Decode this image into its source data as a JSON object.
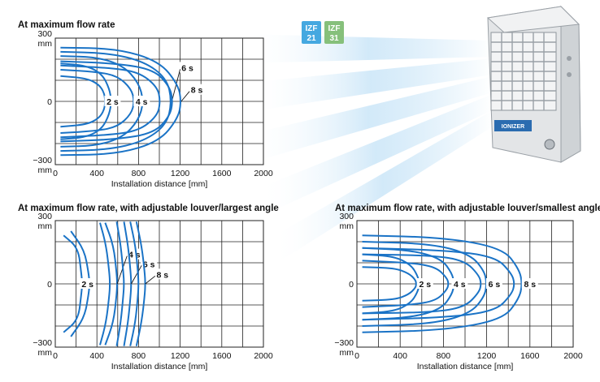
{
  "badges": [
    {
      "line1": "IZF",
      "line2": "21",
      "color": "#45a8e0"
    },
    {
      "line1": "IZF",
      "line2": "31",
      "color": "#86c07b"
    }
  ],
  "product": {
    "brand_label": "IONIZER"
  },
  "colors": {
    "curve": "#1a73c6",
    "grid": "#222222",
    "ray": "#cfe6f7"
  },
  "chart_data": [
    {
      "type": "line",
      "title": "At maximum flow rate",
      "xlabel": "Installation distance [mm]",
      "x_ticks": [
        "0",
        "400",
        "800",
        "1200",
        "1600",
        "2000"
      ],
      "y_ticks": [
        {
          "line1": "300",
          "line2": "mm"
        },
        {
          "line1": "0",
          "line2": ""
        },
        {
          "line1": "−300",
          "line2": "mm"
        }
      ],
      "xlim": [
        0,
        2000
      ],
      "ylim": [
        -300,
        300
      ],
      "grid": true,
      "series": [
        {
          "label": "2 s",
          "label_at": [
            550,
            0
          ],
          "outer": [
            [
              50,
              180
            ],
            [
              300,
              170
            ],
            [
              450,
              130
            ],
            [
              520,
              60
            ],
            [
              540,
              0
            ],
            [
              520,
              -60
            ],
            [
              450,
              -130
            ],
            [
              300,
              -170
            ],
            [
              50,
              -180
            ]
          ],
          "inner": [
            [
              50,
              120
            ],
            [
              300,
              110
            ],
            [
              420,
              80
            ],
            [
              470,
              40
            ],
            [
              480,
              0
            ],
            [
              470,
              -40
            ],
            [
              420,
              -80
            ],
            [
              300,
              -110
            ],
            [
              50,
              -120
            ]
          ]
        },
        {
          "label": "4 s",
          "label_at": [
            830,
            0
          ],
          "outer": [
            [
              50,
              215
            ],
            [
              400,
              210
            ],
            [
              650,
              170
            ],
            [
              800,
              90
            ],
            [
              850,
              0
            ],
            [
              800,
              -90
            ],
            [
              650,
              -170
            ],
            [
              400,
              -210
            ],
            [
              50,
              -215
            ]
          ],
          "inner": [
            [
              50,
              150
            ],
            [
              400,
              140
            ],
            [
              600,
              120
            ],
            [
              730,
              60
            ],
            [
              760,
              0
            ],
            [
              730,
              -60
            ],
            [
              600,
              -120
            ],
            [
              400,
              -140
            ],
            [
              50,
              -150
            ]
          ]
        },
        {
          "label": "6 s",
          "label_at": [
            1270,
            160
          ],
          "outer": [
            [
              50,
              235
            ],
            [
              500,
              230
            ],
            [
              850,
              190
            ],
            [
              1070,
              110
            ],
            [
              1120,
              0
            ],
            [
              1070,
              -110
            ],
            [
              850,
              -190
            ],
            [
              500,
              -230
            ],
            [
              50,
              -235
            ]
          ],
          "inner": [
            [
              50,
              170
            ],
            [
              500,
              160
            ],
            [
              800,
              140
            ],
            [
              980,
              70
            ],
            [
              1010,
              0
            ],
            [
              980,
              -70
            ],
            [
              800,
              -140
            ],
            [
              500,
              -160
            ],
            [
              50,
              -170
            ]
          ]
        },
        {
          "label": "8 s",
          "label_at": [
            1360,
            55
          ],
          "outer": [
            [
              50,
              255
            ],
            [
              600,
              250
            ],
            [
              1000,
              190
            ],
            [
              1180,
              80
            ],
            [
              1210,
              0
            ],
            [
              1180,
              -80
            ],
            [
              1000,
              -190
            ],
            [
              600,
              -250
            ],
            [
              50,
              -255
            ]
          ],
          "inner": [
            [
              50,
              190
            ],
            [
              600,
              180
            ],
            [
              950,
              150
            ],
            [
              1100,
              70
            ],
            [
              1130,
              0
            ],
            [
              1100,
              -70
            ],
            [
              950,
              -150
            ],
            [
              600,
              -180
            ],
            [
              50,
              -190
            ]
          ]
        }
      ]
    },
    {
      "type": "line",
      "title": "At maximum flow rate, with adjustable louver/largest angle",
      "xlabel": "Installation distance [mm]",
      "x_ticks": [
        "0",
        "400",
        "800",
        "1200",
        "1600",
        "2000"
      ],
      "y_ticks": [
        {
          "line1": "300",
          "line2": "mm"
        },
        {
          "line1": "0",
          "line2": ""
        },
        {
          "line1": "−300",
          "line2": "mm"
        }
      ],
      "xlim": [
        0,
        2000
      ],
      "ylim": [
        -300,
        300
      ],
      "grid": true,
      "series": [
        {
          "label": "2 s",
          "label_at": [
            310,
            0
          ],
          "outer": [
            [
              150,
              250
            ],
            [
              280,
              160
            ],
            [
              320,
              50
            ],
            [
              330,
              0
            ],
            [
              320,
              -50
            ],
            [
              280,
              -160
            ],
            [
              150,
              -250
            ]
          ],
          "inner": [
            [
              80,
              230
            ],
            [
              220,
              170
            ],
            [
              250,
              50
            ],
            [
              260,
              0
            ],
            [
              250,
              -50
            ],
            [
              220,
              -170
            ],
            [
              80,
              -230
            ]
          ]
        },
        {
          "label": "4 s",
          "label_at": [
            760,
            140
          ],
          "outer": [
            [
              480,
              290
            ],
            [
              560,
              180
            ],
            [
              590,
              50
            ],
            [
              595,
              0
            ],
            [
              590,
              -50
            ],
            [
              560,
              -180
            ],
            [
              480,
              -290
            ]
          ],
          "inner": [
            [
              430,
              290
            ],
            [
              490,
              180
            ],
            [
              520,
              50
            ],
            [
              525,
              0
            ],
            [
              520,
              -50
            ],
            [
              490,
              -180
            ],
            [
              430,
              -290
            ]
          ]
        },
        {
          "label": "6 s",
          "label_at": [
            900,
            95
          ],
          "outer": [
            [
              660,
              295
            ],
            [
              700,
              180
            ],
            [
              725,
              50
            ],
            [
              730,
              0
            ],
            [
              725,
              -50
            ],
            [
              700,
              -180
            ],
            [
              660,
              -295
            ]
          ],
          "inner": [
            [
              590,
              295
            ],
            [
              630,
              180
            ],
            [
              655,
              50
            ],
            [
              660,
              0
            ],
            [
              655,
              -50
            ],
            [
              630,
              -180
            ],
            [
              590,
              -295
            ]
          ]
        },
        {
          "label": "8 s",
          "label_at": [
            1030,
            45
          ],
          "outer": [
            [
              780,
              295
            ],
            [
              830,
              180
            ],
            [
              860,
              50
            ],
            [
              865,
              0
            ],
            [
              860,
              -50
            ],
            [
              830,
              -180
            ],
            [
              780,
              -295
            ]
          ],
          "inner": [
            [
              720,
              295
            ],
            [
              770,
              180
            ],
            [
              795,
              50
            ],
            [
              800,
              0
            ],
            [
              795,
              -50
            ],
            [
              770,
              -180
            ],
            [
              720,
              -295
            ]
          ]
        }
      ]
    },
    {
      "type": "line",
      "title": "At maximum flow rate, with adjustable louver/smallest angle",
      "xlabel": "Installation distance [mm]",
      "x_ticks": [
        "0",
        "400",
        "800",
        "1200",
        "1600",
        "2000"
      ],
      "y_ticks": [
        {
          "line1": "300",
          "line2": "mm"
        },
        {
          "line1": "0",
          "line2": ""
        },
        {
          "line1": "−300",
          "line2": "mm"
        }
      ],
      "xlim": [
        0,
        2000
      ],
      "ylim": [
        -300,
        300
      ],
      "grid": true,
      "series": [
        {
          "label": "2 s",
          "label_at": [
            630,
            0
          ],
          "outer": [
            [
              50,
              140
            ],
            [
              350,
              130
            ],
            [
              500,
              90
            ],
            [
              560,
              40
            ],
            [
              580,
              0
            ],
            [
              560,
              -40
            ],
            [
              500,
              -90
            ],
            [
              350,
              -130
            ],
            [
              50,
              -140
            ]
          ],
          "inner": [
            [
              50,
              80
            ],
            [
              350,
              75
            ],
            [
              480,
              50
            ],
            [
              540,
              20
            ],
            [
              550,
              0
            ],
            [
              540,
              -20
            ],
            [
              480,
              -50
            ],
            [
              350,
              -75
            ],
            [
              50,
              -80
            ]
          ]
        },
        {
          "label": "4 s",
          "label_at": [
            950,
            0
          ],
          "outer": [
            [
              50,
              170
            ],
            [
              500,
              160
            ],
            [
              780,
              120
            ],
            [
              880,
              50
            ],
            [
              900,
              0
            ],
            [
              880,
              -50
            ],
            [
              780,
              -120
            ],
            [
              500,
              -160
            ],
            [
              50,
              -170
            ]
          ],
          "inner": [
            [
              50,
              110
            ],
            [
              500,
              100
            ],
            [
              730,
              80
            ],
            [
              830,
              30
            ],
            [
              850,
              0
            ],
            [
              830,
              -30
            ],
            [
              730,
              -80
            ],
            [
              500,
              -100
            ],
            [
              50,
              -110
            ]
          ]
        },
        {
          "label": "6 s",
          "label_at": [
            1270,
            0
          ],
          "outer": [
            [
              50,
              200
            ],
            [
              700,
              190
            ],
            [
              1050,
              140
            ],
            [
              1180,
              60
            ],
            [
              1200,
              0
            ],
            [
              1180,
              -60
            ],
            [
              1050,
              -140
            ],
            [
              700,
              -190
            ],
            [
              50,
              -200
            ]
          ],
          "inner": [
            [
              50,
              140
            ],
            [
              700,
              135
            ],
            [
              1000,
              110
            ],
            [
              1130,
              40
            ],
            [
              1150,
              0
            ],
            [
              1130,
              -40
            ],
            [
              1000,
              -110
            ],
            [
              700,
              -135
            ],
            [
              50,
              -140
            ]
          ]
        },
        {
          "label": "8 s",
          "label_at": [
            1600,
            0
          ],
          "outer": [
            [
              50,
              230
            ],
            [
              800,
              220
            ],
            [
              1350,
              170
            ],
            [
              1500,
              70
            ],
            [
              1530,
              0
            ],
            [
              1500,
              -70
            ],
            [
              1350,
              -170
            ],
            [
              800,
              -220
            ],
            [
              50,
              -230
            ]
          ],
          "inner": [
            [
              50,
              170
            ],
            [
              800,
              160
            ],
            [
              1280,
              130
            ],
            [
              1430,
              50
            ],
            [
              1460,
              0
            ],
            [
              1430,
              -50
            ],
            [
              1280,
              -130
            ],
            [
              800,
              -160
            ],
            [
              50,
              -170
            ]
          ]
        }
      ]
    }
  ]
}
